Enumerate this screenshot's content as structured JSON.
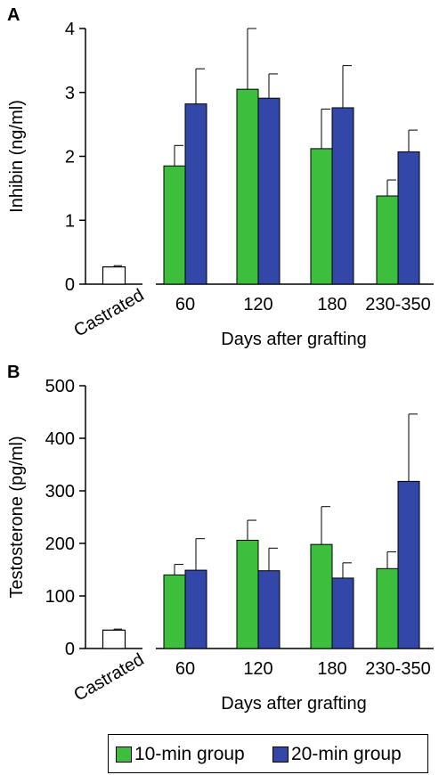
{
  "chart_data": [
    {
      "panel_label": "A",
      "type": "bar",
      "ylabel": "Inhibin (ng/ml)",
      "xlabel": "Days after grafting",
      "ylim": [
        0,
        4
      ],
      "yticks": [
        0,
        1,
        2,
        3,
        4
      ],
      "control": {
        "label": "Castrated",
        "value": 0.27,
        "error": 0.02
      },
      "categories": [
        "60",
        "120",
        "180",
        "230-350"
      ],
      "series": [
        {
          "name": "10-min group",
          "color": "#3dbf3d",
          "values": [
            1.85,
            3.05,
            2.12,
            1.38
          ],
          "errors": [
            0.32,
            0.95,
            0.62,
            0.25
          ]
        },
        {
          "name": "20-min group",
          "color": "#3347a8",
          "values": [
            2.82,
            2.91,
            2.76,
            2.07
          ],
          "errors": [
            0.55,
            0.38,
            0.66,
            0.34
          ]
        }
      ]
    },
    {
      "panel_label": "B",
      "type": "bar",
      "ylabel": "Testosterone (pg/ml)",
      "xlabel": "Days after grafting",
      "ylim": [
        0,
        500
      ],
      "yticks": [
        0,
        100,
        200,
        300,
        400,
        500
      ],
      "control": {
        "label": "Castrated",
        "value": 35,
        "error": 2
      },
      "categories": [
        "60",
        "120",
        "180",
        "230-350"
      ],
      "series": [
        {
          "name": "10-min group",
          "color": "#3dbf3d",
          "values": [
            140,
            206,
            198,
            152
          ],
          "errors": [
            20,
            38,
            72,
            32
          ]
        },
        {
          "name": "20-min group",
          "color": "#3347a8",
          "values": [
            149,
            148,
            134,
            318
          ],
          "errors": [
            60,
            43,
            29,
            128
          ]
        }
      ]
    }
  ],
  "legend": [
    {
      "label": "10-min group",
      "color": "#3dbf3d"
    },
    {
      "label": "20-min group",
      "color": "#3347a8"
    }
  ]
}
